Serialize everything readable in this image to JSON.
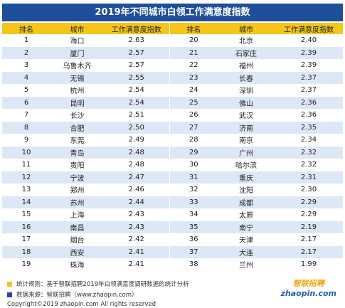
{
  "title": "2019年不同城市白领工作满意度指数",
  "table": {
    "headers": [
      "排名",
      "城市",
      "工作满意度指数",
      "排名",
      "城市",
      "工作满意度指数"
    ],
    "rows": [
      [
        "1",
        "海口",
        "2.63",
        "20",
        "北京",
        "2.40"
      ],
      [
        "2",
        "厦门",
        "2.57",
        "21",
        "石家庄",
        "2.39"
      ],
      [
        "3",
        "乌鲁木齐",
        "2.57",
        "22",
        "福州",
        "2.39"
      ],
      [
        "4",
        "无锡",
        "2.55",
        "23",
        "长春",
        "2.37"
      ],
      [
        "5",
        "杭州",
        "2.54",
        "24",
        "深圳",
        "2.37"
      ],
      [
        "6",
        "昆明",
        "2.54",
        "25",
        "佛山",
        "2.36"
      ],
      [
        "7",
        "长沙",
        "2.51",
        "26",
        "武汉",
        "2.36"
      ],
      [
        "8",
        "合肥",
        "2.50",
        "27",
        "济南",
        "2.35"
      ],
      [
        "9",
        "东莞",
        "2.49",
        "28",
        "南京",
        "2.34"
      ],
      [
        "10",
        "青岛",
        "2.48",
        "29",
        "广州",
        "2.32"
      ],
      [
        "11",
        "贵阳",
        "2.48",
        "30",
        "哈尔滨",
        "2.32"
      ],
      [
        "12",
        "宁波",
        "2.47",
        "31",
        "重庆",
        "2.31"
      ],
      [
        "13",
        "郑州",
        "2.46",
        "32",
        "沈阳",
        "2.30"
      ],
      [
        "14",
        "苏州",
        "2.44",
        "33",
        "成都",
        "2.29"
      ],
      [
        "15",
        "上海",
        "2.43",
        "34",
        "太原",
        "2.29"
      ],
      [
        "16",
        "南昌",
        "2.43",
        "35",
        "南宁",
        "2.19"
      ],
      [
        "17",
        "烟台",
        "2.42",
        "36",
        "天津",
        "2.17"
      ],
      [
        "18",
        "西安",
        "2.41",
        "37",
        "大连",
        "2.17"
      ],
      [
        "19",
        "珠海",
        "2.41",
        "38",
        "兰州",
        "1.99"
      ]
    ]
  },
  "footer": {
    "rule": "统计规则：基于智联招聘2019年白领满意度调研数据的统计分析",
    "source": "数据来源：智联招聘（www.zhaopin.com）",
    "copyright": "Copyright©2019 zhaopin.com All rights reserved"
  },
  "logo": {
    "cn": "智联招聘",
    "en": "zhaopin.com"
  }
}
